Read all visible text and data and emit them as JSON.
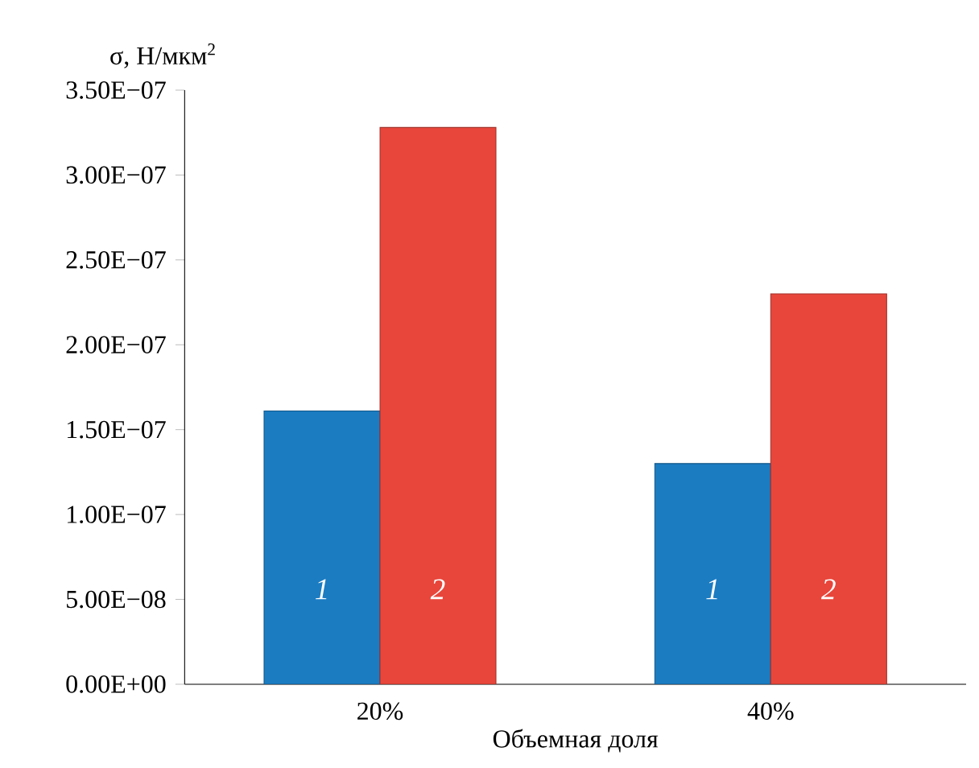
{
  "chart_data": {
    "type": "bar",
    "ylabel": "σ, Н/мкм$^{2}$",
    "xlabel": "Объемная доля",
    "categories": [
      "20%",
      "40%"
    ],
    "series": [
      {
        "name": "1",
        "color": "#1b7cc2",
        "values": [
          1.61e-07,
          1.3e-07
        ]
      },
      {
        "name": "2",
        "color": "#e8463b",
        "values": [
          3.28e-07,
          2.3e-07
        ]
      }
    ],
    "ylim": [
      0,
      3.5e-07
    ],
    "yticks": [
      {
        "value": 0,
        "label": "0.00E+00"
      },
      {
        "value": 5e-08,
        "label": "5.00E−08"
      },
      {
        "value": 1e-07,
        "label": "1.00E−07"
      },
      {
        "value": 1.5e-07,
        "label": "1.50E−07"
      },
      {
        "value": 2e-07,
        "label": "2.00E−07"
      },
      {
        "value": 2.5e-07,
        "label": "2.50E−07"
      },
      {
        "value": 3e-07,
        "label": "3.00E−07"
      },
      {
        "value": 3.5e-07,
        "label": "3.50E−07"
      }
    ],
    "legend": false
  }
}
